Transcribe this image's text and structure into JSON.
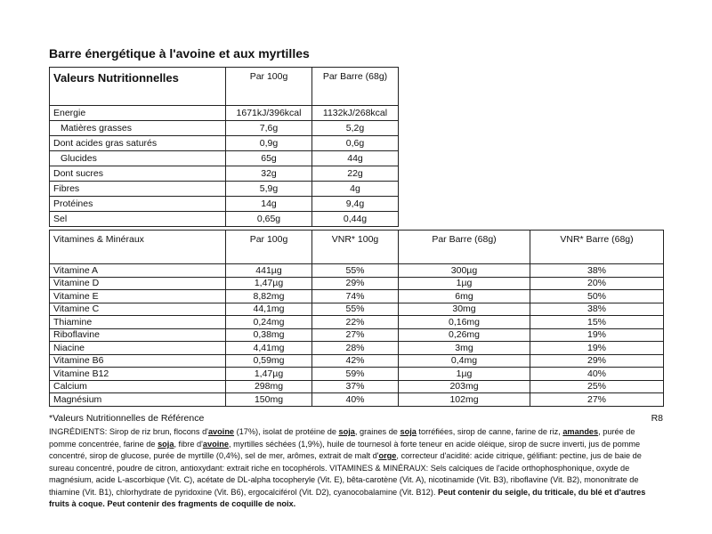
{
  "title": "Barre énergétique à l'avoine et aux myrtilles",
  "nutrition_table": {
    "header": [
      "Valeurs Nutritionnelles",
      "Par 100g",
      "Par Barre (68g)"
    ],
    "rows": [
      [
        "Energie",
        "1671kJ/396kcal",
        "1132kJ/268kcal"
      ],
      [
        "Matières grasses",
        "7,6g",
        "5,2g"
      ],
      [
        "Dont acides gras saturés",
        "0,9g",
        "0,6g"
      ],
      [
        "Glucides",
        "65g",
        "44g"
      ],
      [
        "Dont sucres",
        "32g",
        "22g"
      ],
      [
        "Fibres",
        "5,9g",
        "4g"
      ],
      [
        "Protéines",
        "14g",
        "9,4g"
      ],
      [
        "Sel",
        "0,65g",
        "0,44g"
      ]
    ]
  },
  "vitamins_table": {
    "header": [
      "Vitamines & Minéraux",
      "Par 100g",
      "VNR* 100g",
      "Par Barre (68g)",
      "VNR* Barre (68g)"
    ],
    "rows": [
      [
        "Vitamine A",
        "441µg",
        "55%",
        "300µg",
        "38%"
      ],
      [
        "Vitamine D",
        "1,47µg",
        "29%",
        "1µg",
        "20%"
      ],
      [
        "Vitamine E",
        "8,82mg",
        "74%",
        "6mg",
        "50%"
      ],
      [
        "Vitamine C",
        "44,1mg",
        "55%",
        "30mg",
        "38%"
      ],
      [
        "Thiamine",
        "0,24mg",
        "22%",
        "0,16mg",
        "15%"
      ],
      [
        "Riboflavine",
        "0,38mg",
        "27%",
        "0,26mg",
        "19%"
      ],
      [
        "Niacine",
        "4,41mg",
        "28%",
        "3mg",
        "19%"
      ],
      [
        "Vitamine B6",
        "0,59mg",
        "42%",
        "0,4mg",
        "29%"
      ],
      [
        "Vitamine B12",
        "1,47µg",
        "59%",
        "1µg",
        "40%"
      ],
      [
        "Calcium",
        "298mg",
        "37%",
        "203mg",
        "25%"
      ],
      [
        "Magnésium",
        "150mg",
        "40%",
        "102mg",
        "27%"
      ]
    ]
  },
  "footnote": "*Valeurs Nutritionnelles de Référence",
  "code": "R8",
  "ingredients": [
    "INGRÉDIENTS: Sirop de riz brun, flocons d'",
    "avoine",
    " (17%), isolat de protéine de ",
    "soja",
    ", graines de ",
    "soja",
    " torréfiées, sirop de canne, farine de riz, ",
    "amandes",
    ", purée de pomme concentrée, farine de ",
    "soja",
    ", fibre d'",
    "avoine",
    ", myrtilles séchées (1,9%), huile de tournesol à forte teneur en acide oléique, sirop de sucre inverti, jus de pomme concentré, sirop de glucose, purée de myrtille (0,4%), sel de mer, arômes, extrait de malt d'",
    "orge",
    ", correcteur d'acidité: acide citrique, gélifiant: pectine, jus de baie de sureau concentré, poudre de citron, antioxydant: extrait riche en tocophérols. VITAMINES & MINÉRAUX: Sels calciques de l'acide orthophosphonique, oxyde de magnésium, acide L-ascorbique (Vit. C), acétate de DL-alpha tocopheryle (Vit. E), bêta-carotène (Vit. A), nicotinamide (Vit. B3), riboflavine (Vit. B2), mononitrate de thiamine (Vit. B1), chlorhydrate de pyridoxine (Vit. B6), ergocalciférol (Vit. D2), cyanocobalamine (Vit. B12). ",
    "Peut contenir du seigle, du triticale, du blé et d'autres fruits à coque. Peut contenir des fragments de coquille de noix."
  ]
}
